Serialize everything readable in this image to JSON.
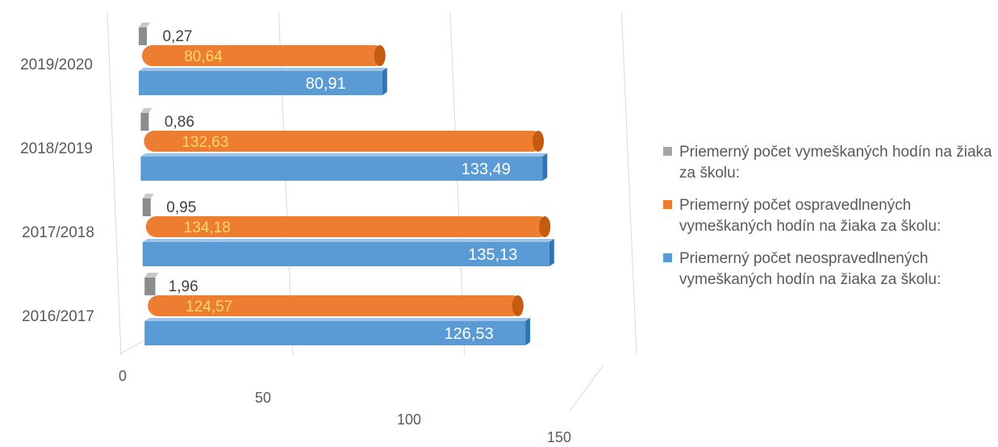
{
  "chart_data": {
    "type": "bar",
    "orientation": "horizontal",
    "style": "3d",
    "title": "",
    "xlabel": "",
    "ylabel": "",
    "categories": [
      "2016/2017",
      "2017/2018",
      "2018/2019",
      "2019/2020"
    ],
    "xlim": [
      0,
      150
    ],
    "ticks": [
      "0",
      "50",
      "100",
      "150"
    ],
    "grid": true,
    "legend_position": "right",
    "series": [
      {
        "name": "Priemerný počet vymeškaných hodín na žiaka za školu:",
        "color": "#a5a5a5",
        "values": [
          1.96,
          0.95,
          0.86,
          0.27
        ],
        "labels": [
          "1,96",
          "0,95",
          "0,86",
          "0,27"
        ]
      },
      {
        "name": "Priemerný počet ospravedlnených vymeškaných hodín na žiaka za školu:",
        "color": "#ed7d31",
        "values": [
          124.57,
          134.18,
          132.63,
          80.64
        ],
        "labels": [
          "124,57",
          "134,18",
          "132,63",
          "80,64"
        ]
      },
      {
        "name": "Priemerný počet neospravedlnených vymeškaných hodín na žiaka za školu:",
        "color": "#5b9bd5",
        "values": [
          126.53,
          135.13,
          133.49,
          80.91
        ],
        "labels": [
          "126,53",
          "135,13",
          "133,49",
          "80,91"
        ]
      }
    ]
  }
}
